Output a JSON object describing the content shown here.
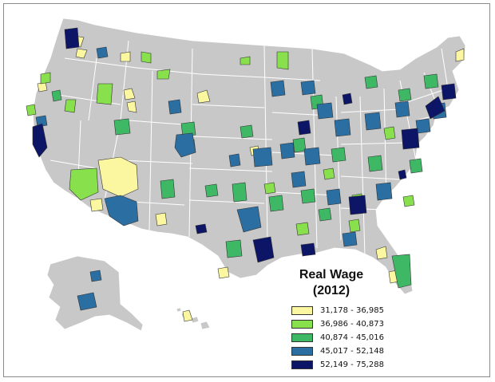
{
  "legend": {
    "title_line1": "Real Wage",
    "title_line2": "(2012)",
    "classes": [
      {
        "label": "31,178 - 36,985",
        "color": "#fbf7a0"
      },
      {
        "label": "36,986 - 40,873",
        "color": "#88e04c"
      },
      {
        "label": "40,874 - 45,016",
        "color": "#3fb866"
      },
      {
        "label": "45,017 - 52,148",
        "color": "#2b6ea2"
      },
      {
        "label": "52,149 - 75,288",
        "color": "#0d1566"
      }
    ]
  },
  "colors": {
    "land": "#c8c8c8",
    "state_border": "#ffffff",
    "region_border": "#333333"
  }
}
